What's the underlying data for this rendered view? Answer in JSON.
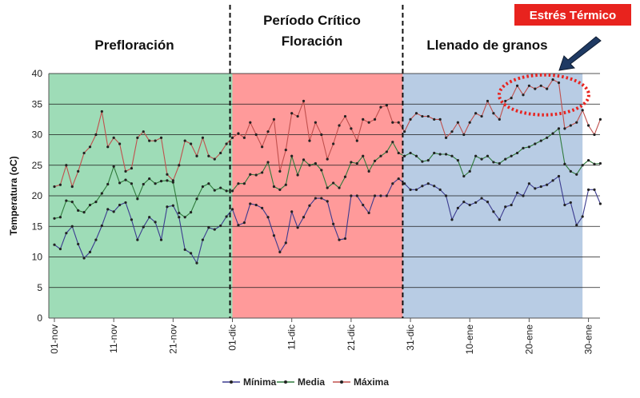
{
  "chart_data": {
    "type": "line",
    "title": "",
    "xlabel": "",
    "ylabel": "Temperatura (oC)",
    "ylim": [
      0,
      40
    ],
    "yticks": [
      0,
      5,
      10,
      15,
      20,
      25,
      30,
      35,
      40
    ],
    "grid": true,
    "x_start": "01-nov",
    "days": 92,
    "xtick_labels": [
      {
        "day": 0,
        "label": "01-nov"
      },
      {
        "day": 10,
        "label": "11-nov"
      },
      {
        "day": 20,
        "label": "21-nov"
      },
      {
        "day": 30,
        "label": "01-dic"
      },
      {
        "day": 40,
        "label": "11-dic"
      },
      {
        "day": 50,
        "label": "21-dic"
      },
      {
        "day": 60,
        "label": "31-dic"
      },
      {
        "day": 70,
        "label": "10-ene"
      },
      {
        "day": 80,
        "label": "20-ene"
      },
      {
        "day": 90,
        "label": "30-ene"
      }
    ],
    "phases": [
      {
        "label": "Prefloración",
        "start_day": 0,
        "end_day": 30,
        "color": "#9edcb7"
      },
      {
        "label_lines": [
          "Período Crítico",
          "Floración"
        ],
        "start_day": 30,
        "end_day": 58.7,
        "color": "#ff9a9a"
      },
      {
        "label": "Llenado de granos",
        "start_day": 58.7,
        "end_day": 89,
        "color": "#b8cce4"
      }
    ],
    "annotation": {
      "label": "Estrés Térmico",
      "box_color": "#e8231e",
      "ellipse_color": "#e8231e",
      "ellipse_center_day": 82.5,
      "ellipse_center_value": 36.5
    },
    "series": [
      {
        "name": "Mínima",
        "color": "#3b3b8f",
        "values": [
          12.0,
          11.3,
          13.9,
          15.0,
          12.1,
          9.8,
          10.8,
          12.8,
          15.1,
          17.8,
          17.4,
          18.5,
          18.9,
          16.1,
          12.8,
          14.9,
          16.5,
          15.7,
          12.8,
          18.2,
          18.4,
          16.5,
          11.2,
          10.6,
          9.0,
          12.8,
          14.8,
          14.5,
          15.1,
          16.6,
          17.8,
          15.2,
          15.6,
          18.7,
          18.5,
          18.0,
          16.5,
          13.5,
          10.8,
          12.3,
          17.4,
          14.8,
          16.5,
          18.4,
          19.6,
          19.6,
          19.1,
          15.4,
          12.8,
          13.0,
          20.0,
          20.0,
          18.5,
          17.2,
          20.0,
          20.0,
          20.0,
          22.0,
          22.8,
          22.0,
          21.0,
          21.0,
          21.6,
          22.0,
          21.6,
          21.0,
          20.0,
          16.1,
          18.0,
          19.0,
          18.5,
          18.9,
          19.6,
          19.0,
          17.4,
          16.1,
          18.2,
          18.5,
          20.5,
          20.0,
          22.0,
          21.2,
          21.5,
          21.8,
          22.5,
          23.2,
          18.5,
          18.9,
          15.2,
          16.6,
          21.0,
          21.0,
          18.7
        ]
      },
      {
        "name": "Media",
        "color": "#2f7a3b",
        "values": [
          16.3,
          16.5,
          19.2,
          19.0,
          17.6,
          17.3,
          18.5,
          19.0,
          20.4,
          21.9,
          24.8,
          22.1,
          22.6,
          22.0,
          19.5,
          21.9,
          22.8,
          22.0,
          22.4,
          22.5,
          22.2,
          17.2,
          16.5,
          17.3,
          19.5,
          21.5,
          22.0,
          20.9,
          21.3,
          20.8,
          20.8,
          22.0,
          22.0,
          23.5,
          23.4,
          23.8,
          25.5,
          21.5,
          21.0,
          21.8,
          26.5,
          23.4,
          25.9,
          25.0,
          25.3,
          24.2,
          21.3,
          22.1,
          21.3,
          23.1,
          25.5,
          25.3,
          26.5,
          24.0,
          25.7,
          26.5,
          27.2,
          28.8,
          27.0,
          26.5,
          27.0,
          26.5,
          25.6,
          25.8,
          27.0,
          26.8,
          26.8,
          26.5,
          25.8,
          23.2,
          24.0,
          26.5,
          26.0,
          26.5,
          25.5,
          25.3,
          26.0,
          26.5,
          27.0,
          27.8,
          28.0,
          28.5,
          29.0,
          29.5,
          30.2,
          31.0,
          25.2,
          24.0,
          23.5,
          25.0,
          25.8,
          25.2,
          25.3
        ]
      },
      {
        "name": "Máxima",
        "color": "#c0504d",
        "values": [
          21.5,
          21.8,
          25.0,
          21.5,
          24.0,
          27.0,
          28.0,
          30.0,
          33.8,
          28.0,
          29.5,
          28.5,
          24.0,
          24.5,
          29.5,
          30.5,
          29.0,
          29.0,
          29.5,
          23.5,
          22.5,
          25.0,
          29.0,
          28.5,
          26.5,
          29.5,
          26.5,
          26.0,
          27.0,
          28.5,
          29.5,
          30.2,
          29.5,
          32.0,
          30.0,
          28.0,
          30.5,
          32.5,
          24.0,
          27.5,
          33.5,
          33.0,
          35.5,
          29.0,
          32.0,
          30.0,
          26.0,
          28.5,
          31.5,
          33.0,
          31.0,
          29.0,
          32.5,
          32.0,
          32.5,
          34.5,
          34.8,
          32.0,
          32.0,
          30.5,
          32.5,
          33.5,
          33.0,
          33.0,
          32.5,
          32.5,
          29.5,
          30.5,
          32.0,
          30.0,
          32.0,
          33.5,
          33.0,
          35.5,
          33.5,
          32.5,
          35.5,
          36.0,
          38.0,
          36.5,
          38.0,
          37.5,
          38.0,
          37.5,
          39.0,
          38.5,
          31.0,
          31.5,
          32.0,
          34.0,
          31.5,
          30.0,
          32.5
        ]
      }
    ],
    "legend": {
      "placement": "bottom-center",
      "entries": [
        "Mínima",
        "Media",
        "Máxima"
      ]
    }
  }
}
